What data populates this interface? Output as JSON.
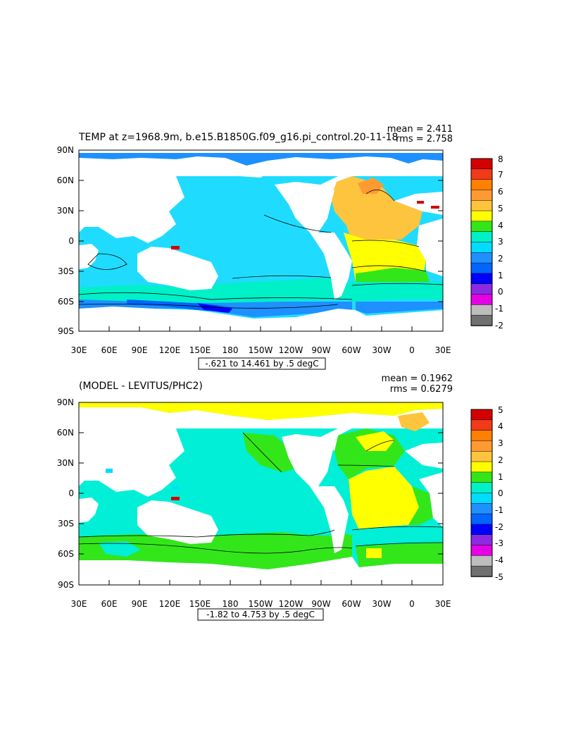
{
  "colors": {
    "land": "#ffffff",
    "top_ocean_base": "#1fdcff",
    "bottom_ocean_base": "#00efd6"
  },
  "panels": [
    {
      "title": "TEMP at z=1968.9m, b.e15.B1850G.f09_g16.pi_control.20-11-18",
      "stats": {
        "mean": "mean = 2.411",
        "rms": "rms = 2.758"
      },
      "range_text": "-.621 to 14.461 by .5 degC",
      "y_ticks": [
        "90N",
        "60N",
        "30N",
        "0",
        "30S",
        "60S",
        "90S"
      ],
      "x_ticks": [
        "30E",
        "60E",
        "90E",
        "120E",
        "150E",
        "180",
        "150W",
        "120W",
        "90W",
        "60W",
        "30W",
        "0",
        "30E"
      ],
      "colorbar": {
        "labels": [
          "8",
          "7",
          "6",
          "5",
          "4",
          "3",
          "2",
          "1",
          "0",
          "-1",
          "-2"
        ],
        "colors": [
          "#d40000",
          "#f03a1a",
          "#ff8000",
          "#ff9a33",
          "#ffc43d",
          "#ffff00",
          "#33e61a",
          "#00f0c8",
          "#00dcff",
          "#1e90ff",
          "#0066ff",
          "#0000ff",
          "#8a2be2",
          "#e600e6",
          "#bdbdbd",
          "#707070"
        ]
      }
    },
    {
      "title": "(MODEL - LEVITUS/PHC2)",
      "stats": {
        "mean": "mean = 0.1962",
        "rms": "rms = 0.6279"
      },
      "range_text": "-1.82 to 4.753 by .5 degC",
      "y_ticks": [
        "90N",
        "60N",
        "30N",
        "0",
        "30S",
        "60S",
        "90S"
      ],
      "x_ticks": [
        "30E",
        "60E",
        "90E",
        "120E",
        "150E",
        "180",
        "150W",
        "120W",
        "90W",
        "60W",
        "30W",
        "0",
        "30E"
      ],
      "colorbar": {
        "labels": [
          "5",
          "4",
          "3",
          "2",
          "1",
          "0",
          "-1",
          "-2",
          "-3",
          "-4",
          "-5"
        ],
        "colors": [
          "#d40000",
          "#f03a1a",
          "#ff8000",
          "#ff9a33",
          "#ffc43d",
          "#ffff00",
          "#33e61a",
          "#00f0c8",
          "#00dcff",
          "#1e90ff",
          "#0066ff",
          "#0000ff",
          "#8a2be2",
          "#e600e6",
          "#bdbdbd",
          "#707070"
        ]
      }
    }
  ]
}
